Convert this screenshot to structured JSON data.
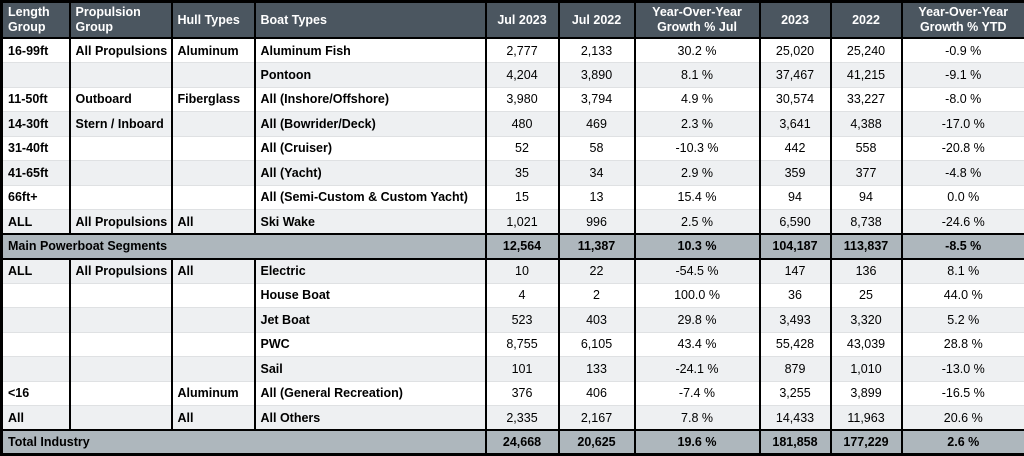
{
  "colors": {
    "header_bg": "#4b5660",
    "header_text": "#ffffff",
    "summary_bg": "#aeb7bd",
    "stripe_bg": "#eef0f2",
    "border": "#000000",
    "text": "#000000"
  },
  "chart_data": {
    "type": "table",
    "columns": [
      {
        "label": "Length\nGroup",
        "align": "left"
      },
      {
        "label": "Propulsion\nGroup",
        "align": "left"
      },
      {
        "label": "Hull Types",
        "align": "left"
      },
      {
        "label": "Boat Types",
        "align": "left"
      },
      {
        "label": "Jul 2023",
        "align": "center"
      },
      {
        "label": "Jul 2022",
        "align": "center"
      },
      {
        "label": "Year-Over-Year\nGrowth % Jul",
        "align": "center"
      },
      {
        "label": "2023",
        "align": "center"
      },
      {
        "label": "2022",
        "align": "center"
      },
      {
        "label": "Year-Over-Year\nGrowth % YTD",
        "align": "center"
      }
    ],
    "rows": [
      {
        "type": "data",
        "cells": [
          "16-99ft",
          "All Propulsions",
          "Aluminum",
          "Aluminum Fish",
          "2,777",
          "2,133",
          "30.2 %",
          "25,020",
          "25,240",
          "-0.9 %"
        ]
      },
      {
        "type": "data",
        "cells": [
          "",
          "",
          "",
          "Pontoon",
          "4,204",
          "3,890",
          "8.1 %",
          "37,467",
          "41,215",
          "-9.1 %"
        ]
      },
      {
        "type": "data",
        "cells": [
          "11-50ft",
          "Outboard",
          "Fiberglass",
          "All (Inshore/Offshore)",
          "3,980",
          "3,794",
          "4.9 %",
          "30,574",
          "33,227",
          "-8.0 %"
        ]
      },
      {
        "type": "data",
        "cells": [
          "14-30ft",
          "Stern / Inboard",
          "",
          "All (Bowrider/Deck)",
          "480",
          "469",
          "2.3 %",
          "3,641",
          "4,388",
          "-17.0 %"
        ]
      },
      {
        "type": "data",
        "cells": [
          "31-40ft",
          "",
          "",
          "All (Cruiser)",
          "52",
          "58",
          "-10.3 %",
          "442",
          "558",
          "-20.8 %"
        ]
      },
      {
        "type": "data",
        "cells": [
          "41-65ft",
          "",
          "",
          "All (Yacht)",
          "35",
          "34",
          "2.9 %",
          "359",
          "377",
          "-4.8 %"
        ]
      },
      {
        "type": "data",
        "cells": [
          "66ft+",
          "",
          "",
          "All (Semi-Custom & Custom Yacht)",
          "15",
          "13",
          "15.4 %",
          "94",
          "94",
          "0.0 %"
        ]
      },
      {
        "type": "data",
        "cells": [
          "ALL",
          "All Propulsions",
          "All",
          "Ski Wake",
          "1,021",
          "996",
          "2.5 %",
          "6,590",
          "8,738",
          "-24.6 %"
        ]
      },
      {
        "type": "summary",
        "label": "Main Powerboat Segments",
        "values": [
          "12,564",
          "11,387",
          "10.3 %",
          "104,187",
          "113,837",
          "-8.5 %"
        ]
      },
      {
        "type": "data",
        "cells": [
          "ALL",
          "All Propulsions",
          "All",
          "Electric",
          "10",
          "22",
          "-54.5 %",
          "147",
          "136",
          "8.1 %"
        ]
      },
      {
        "type": "data",
        "cells": [
          "",
          "",
          "",
          "House Boat",
          "4",
          "2",
          "100.0 %",
          "36",
          "25",
          "44.0 %"
        ]
      },
      {
        "type": "data",
        "cells": [
          "",
          "",
          "",
          "Jet Boat",
          "523",
          "403",
          "29.8 %",
          "3,493",
          "3,320",
          "5.2 %"
        ]
      },
      {
        "type": "data",
        "cells": [
          "",
          "",
          "",
          "PWC",
          "8,755",
          "6,105",
          "43.4 %",
          "55,428",
          "43,039",
          "28.8 %"
        ]
      },
      {
        "type": "data",
        "cells": [
          "",
          "",
          "",
          "Sail",
          "101",
          "133",
          "-24.1 %",
          "879",
          "1,010",
          "-13.0 %"
        ]
      },
      {
        "type": "data",
        "cells": [
          "<16",
          "",
          "Aluminum",
          "All (General Recreation)",
          "376",
          "406",
          "-7.4 %",
          "3,255",
          "3,899",
          "-16.5 %"
        ]
      },
      {
        "type": "data",
        "cells": [
          "All",
          "",
          "All",
          "All Others",
          "2,335",
          "2,167",
          "7.8 %",
          "14,433",
          "11,963",
          "20.6 %"
        ]
      },
      {
        "type": "summary",
        "label": "Total Industry",
        "values": [
          "24,668",
          "20,625",
          "19.6 %",
          "181,858",
          "177,229",
          "2.6 %"
        ]
      }
    ]
  }
}
